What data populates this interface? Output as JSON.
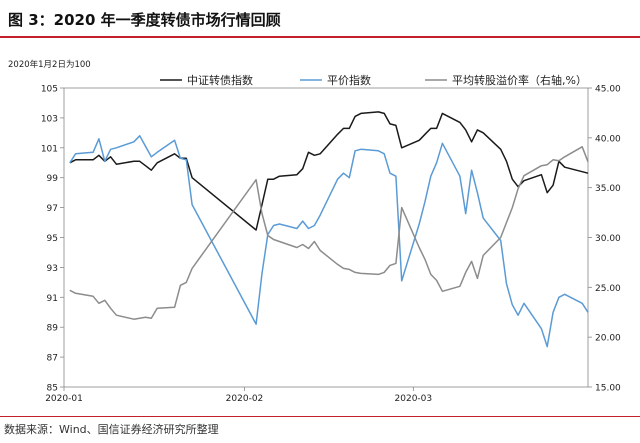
{
  "figure": {
    "title": "图 3：2020 年一季度转债市场行情回顾",
    "source": "数据来源：Wind、国信证券经济研究所整理"
  },
  "chart_data": {
    "type": "line",
    "note": "2020年1月2日为100",
    "x_tick_labels": [
      "2020-01",
      "2020-02",
      "2020-03"
    ],
    "x_tick_dates": [
      "2020-01-01",
      "2020-02-01",
      "2020-03-01"
    ],
    "x_range": [
      "2020-01-01",
      "2020-03-31"
    ],
    "y_left": {
      "ylim": [
        85,
        105
      ],
      "ticks": [
        85,
        87,
        89,
        91,
        93,
        95,
        97,
        99,
        101,
        103,
        105
      ]
    },
    "y_right": {
      "ylim": [
        15,
        45
      ],
      "ticks": [
        "15.00",
        "20.00",
        "25.00",
        "30.00",
        "35.00",
        "40.00",
        "45.00"
      ]
    },
    "legend_position": "top",
    "series": [
      {
        "name": "中证转债指数",
        "axis": "left",
        "color": "#1a1a1a",
        "x": [
          "2020-01-02",
          "2020-01-03",
          "2020-01-06",
          "2020-01-07",
          "2020-01-08",
          "2020-01-09",
          "2020-01-10",
          "2020-01-13",
          "2020-01-14",
          "2020-01-15",
          "2020-01-16",
          "2020-01-17",
          "2020-01-20",
          "2020-01-21",
          "2020-01-22",
          "2020-01-23",
          "2020-02-03",
          "2020-02-04",
          "2020-02-05",
          "2020-02-06",
          "2020-02-07",
          "2020-02-10",
          "2020-02-11",
          "2020-02-12",
          "2020-02-13",
          "2020-02-14",
          "2020-02-17",
          "2020-02-18",
          "2020-02-19",
          "2020-02-20",
          "2020-02-21",
          "2020-02-24",
          "2020-02-25",
          "2020-02-26",
          "2020-02-27",
          "2020-02-28",
          "2020-03-02",
          "2020-03-03",
          "2020-03-04",
          "2020-03-05",
          "2020-03-06",
          "2020-03-09",
          "2020-03-10",
          "2020-03-11",
          "2020-03-12",
          "2020-03-13",
          "2020-03-16",
          "2020-03-17",
          "2020-03-18",
          "2020-03-19",
          "2020-03-20",
          "2020-03-23",
          "2020-03-24",
          "2020-03-25",
          "2020-03-26",
          "2020-03-27",
          "2020-03-30",
          "2020-03-31"
        ],
        "values": [
          100.0,
          100.2,
          100.2,
          100.5,
          100.1,
          100.4,
          99.9,
          100.1,
          100.1,
          99.8,
          99.5,
          100.0,
          100.6,
          100.3,
          100.3,
          99.0,
          95.5,
          97.2,
          98.9,
          98.9,
          99.1,
          99.2,
          99.6,
          100.7,
          100.5,
          100.6,
          101.9,
          102.3,
          102.3,
          103.1,
          103.3,
          103.4,
          103.3,
          102.6,
          102.5,
          101.0,
          101.5,
          101.9,
          102.3,
          102.3,
          103.3,
          102.7,
          102.2,
          101.4,
          102.2,
          102.0,
          100.9,
          100.1,
          98.9,
          98.4,
          98.8,
          99.2,
          98.0,
          98.5,
          100.1,
          99.7,
          99.4,
          99.3
        ],
        "dashes": []
      },
      {
        "name": "平价指数",
        "axis": "left",
        "color": "#5b9bd5",
        "x": [
          "2020-01-02",
          "2020-01-03",
          "2020-01-06",
          "2020-01-07",
          "2020-01-08",
          "2020-01-09",
          "2020-01-10",
          "2020-01-13",
          "2020-01-14",
          "2020-01-15",
          "2020-01-16",
          "2020-01-17",
          "2020-01-20",
          "2020-01-21",
          "2020-01-22",
          "2020-01-23",
          "2020-02-03",
          "2020-02-04",
          "2020-02-05",
          "2020-02-06",
          "2020-02-07",
          "2020-02-10",
          "2020-02-11",
          "2020-02-12",
          "2020-02-13",
          "2020-02-14",
          "2020-02-17",
          "2020-02-18",
          "2020-02-19",
          "2020-02-20",
          "2020-02-21",
          "2020-02-24",
          "2020-02-25",
          "2020-02-26",
          "2020-02-27",
          "2020-02-28",
          "2020-03-02",
          "2020-03-03",
          "2020-03-04",
          "2020-03-05",
          "2020-03-06",
          "2020-03-09",
          "2020-03-10",
          "2020-03-11",
          "2020-03-12",
          "2020-03-13",
          "2020-03-16",
          "2020-03-17",
          "2020-03-18",
          "2020-03-19",
          "2020-03-20",
          "2020-03-23",
          "2020-03-24",
          "2020-03-25",
          "2020-03-26",
          "2020-03-27",
          "2020-03-30",
          "2020-03-31"
        ],
        "values": [
          100.0,
          100.6,
          100.7,
          101.6,
          100.1,
          100.9,
          101.0,
          101.4,
          101.8,
          101.1,
          100.4,
          100.7,
          101.5,
          100.3,
          100.2,
          97.2,
          89.2,
          92.6,
          95.2,
          95.8,
          95.9,
          95.6,
          96.1,
          95.6,
          95.8,
          96.5,
          98.9,
          99.3,
          99.0,
          100.8,
          100.9,
          100.8,
          100.6,
          99.3,
          99.1,
          92.1,
          95.9,
          97.4,
          99.1,
          100.0,
          101.3,
          99.1,
          96.6,
          99.5,
          98.0,
          96.3,
          94.8,
          91.9,
          90.5,
          89.8,
          90.6,
          88.9,
          87.7,
          90.0,
          91.0,
          91.2,
          90.6,
          90.0
        ],
        "dashes": [
          [
            0,
            1
          ]
        ]
      },
      {
        "name": "平均转股溢价率（右轴,%）",
        "axis": "right",
        "color": "#8c8c8c",
        "x": [
          "2020-01-02",
          "2020-01-03",
          "2020-01-06",
          "2020-01-07",
          "2020-01-08",
          "2020-01-09",
          "2020-01-10",
          "2020-01-13",
          "2020-01-14",
          "2020-01-15",
          "2020-01-16",
          "2020-01-17",
          "2020-01-20",
          "2020-01-21",
          "2020-01-22",
          "2020-01-23",
          "2020-02-03",
          "2020-02-04",
          "2020-02-05",
          "2020-02-06",
          "2020-02-07",
          "2020-02-10",
          "2020-02-11",
          "2020-02-12",
          "2020-02-13",
          "2020-02-14",
          "2020-02-17",
          "2020-02-18",
          "2020-02-19",
          "2020-02-20",
          "2020-02-21",
          "2020-02-24",
          "2020-02-25",
          "2020-02-26",
          "2020-02-27",
          "2020-02-28",
          "2020-03-02",
          "2020-03-03",
          "2020-03-04",
          "2020-03-05",
          "2020-03-06",
          "2020-03-09",
          "2020-03-10",
          "2020-03-11",
          "2020-03-12",
          "2020-03-13",
          "2020-03-16",
          "2020-03-17",
          "2020-03-18",
          "2020-03-19",
          "2020-03-20",
          "2020-03-23",
          "2020-03-24",
          "2020-03-25",
          "2020-03-26",
          "2020-03-27",
          "2020-03-30",
          "2020-03-31"
        ],
        "values": [
          24.7,
          24.4,
          24.1,
          23.4,
          23.7,
          22.9,
          22.2,
          21.8,
          21.9,
          22.0,
          21.9,
          22.9,
          23.0,
          25.2,
          25.5,
          26.9,
          35.8,
          32.4,
          30.2,
          29.8,
          29.6,
          29.0,
          29.3,
          28.9,
          29.6,
          28.7,
          27.3,
          26.9,
          26.8,
          26.5,
          26.4,
          26.3,
          26.5,
          27.2,
          27.4,
          33.0,
          29.0,
          27.8,
          26.3,
          25.7,
          24.6,
          25.1,
          26.5,
          27.6,
          25.9,
          28.2,
          30.0,
          31.5,
          33.0,
          34.9,
          36.2,
          37.2,
          37.3,
          37.8,
          37.7,
          38.1,
          39.1,
          37.6
        ],
        "dashes": []
      }
    ]
  }
}
